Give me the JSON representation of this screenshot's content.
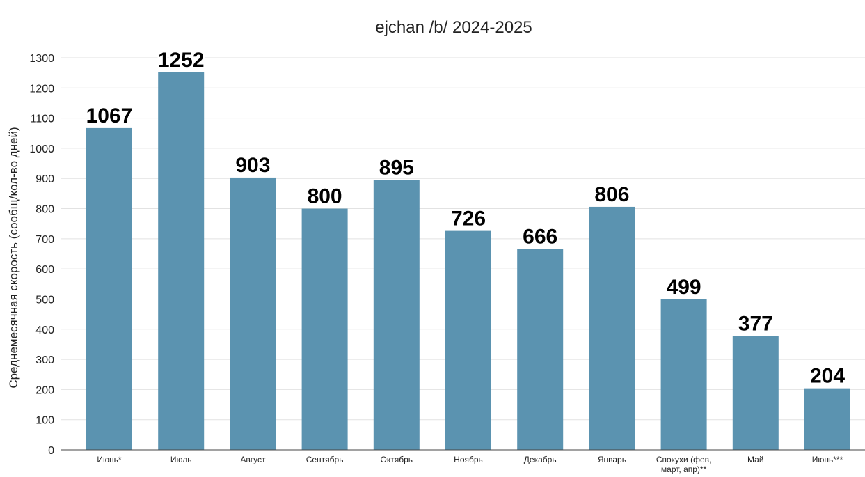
{
  "chart_data": {
    "type": "bar",
    "title": "ejchan /b/ 2024-2025",
    "xlabel": "",
    "ylabel": "Среднемесячная скорость (сообщ/кол-во дней)",
    "categories": [
      "Июнь*",
      "Июль",
      "Август",
      "Сентябрь",
      "Октябрь",
      "Ноябрь",
      "Декабрь",
      "Январь",
      "Спокухи (фев, март, апр)**",
      "Май",
      "Июнь***"
    ],
    "values": [
      1067,
      1252,
      903,
      800,
      895,
      726,
      666,
      806,
      499,
      377,
      204
    ],
    "ylim": [
      0,
      1300
    ],
    "yticks": [
      0,
      100,
      200,
      300,
      400,
      500,
      600,
      700,
      800,
      900,
      1000,
      1100,
      1200,
      1300
    ],
    "grid": true,
    "bar_color": "#5b93b0",
    "data_labels": true
  }
}
